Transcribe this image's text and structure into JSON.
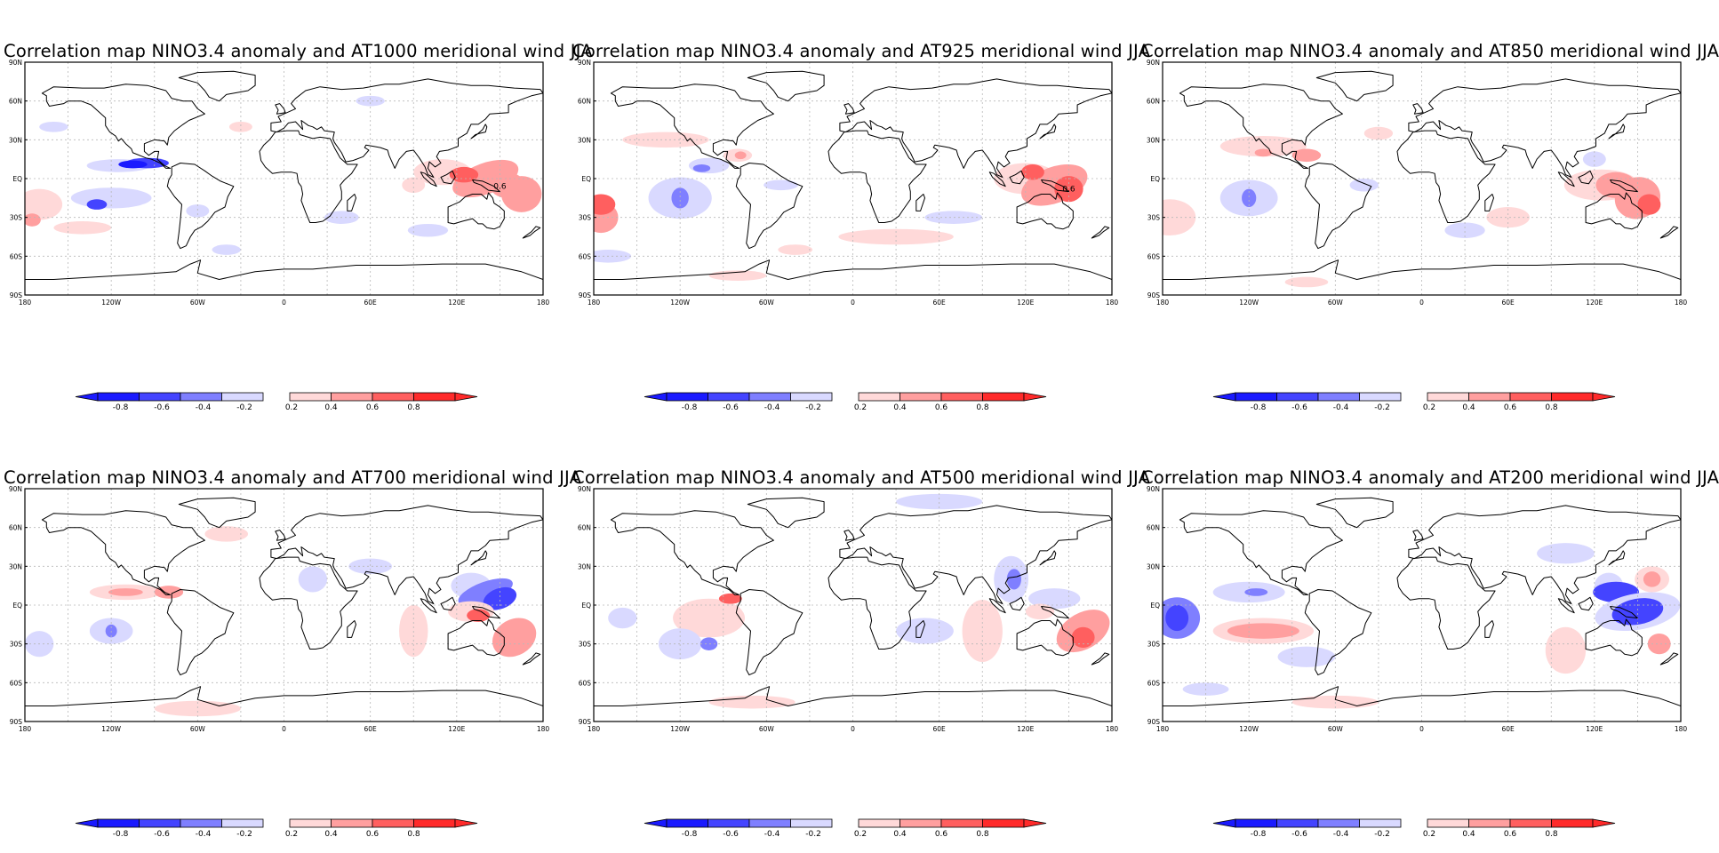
{
  "axes": {
    "lat_labels": [
      "90N",
      "60N",
      "30N",
      "EQ",
      "30S",
      "60S",
      "90S"
    ],
    "lon_labels": [
      "180",
      "120W",
      "60W",
      "0",
      "60E",
      "120E",
      "180"
    ]
  },
  "colorbar": {
    "labels": [
      "-0.8",
      "-0.6",
      "-0.4",
      "-0.2",
      "0.2",
      "0.4",
      "0.6",
      "0.8"
    ],
    "colors": [
      "#1a1aff",
      "#4444ff",
      "#7f7fff",
      "#d9d9ff",
      "#ffd9d9",
      "#ff9f9f",
      "#ff5f5f",
      "#ff2a2a"
    ]
  },
  "panels": [
    {
      "title": "Correlation map NINO3.4 anomaly and AT1000 meridional wind JJA",
      "contour_label": "0.6"
    },
    {
      "title": "Correlation map NINO3.4 anomaly and AT925 meridional wind JJA",
      "contour_label": "0.6"
    },
    {
      "title": "Correlation map NINO3.4 anomaly and AT850 meridional wind JJA",
      "contour_label": ""
    },
    {
      "title": "Correlation map NINO3.4 anomaly and AT700 meridional wind JJA",
      "contour_label": ""
    },
    {
      "title": "Correlation map NINO3.4 anomaly and AT500 meridional wind JJA",
      "contour_label": ""
    },
    {
      "title": "Correlation map NINO3.4 anomaly and AT200 meridional wind JJA",
      "contour_label": ""
    }
  ]
}
